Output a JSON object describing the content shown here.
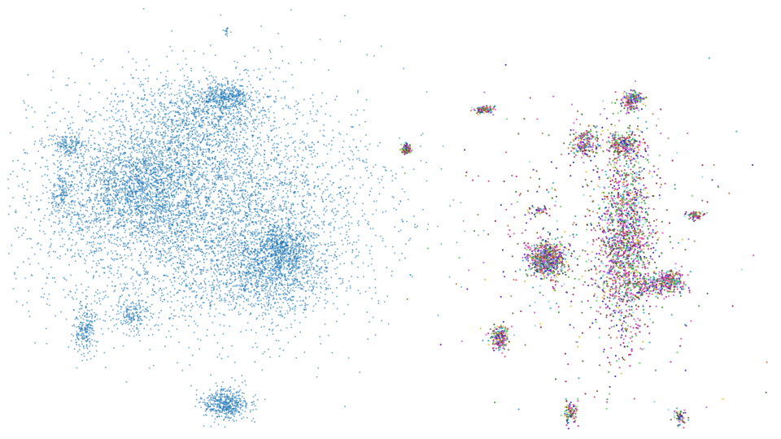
{
  "chart_data": [
    {
      "type": "scatter",
      "title": "",
      "xlabel": "",
      "ylabel": "",
      "axes_visible": false,
      "grid": false,
      "legend": "none",
      "point_color": "#1f77b4",
      "point_alpha": 0.55,
      "clusters": [
        {
          "center": [
            0.26,
            0.48
          ],
          "spread": [
            0.22,
            0.26
          ],
          "count": 5200
        },
        {
          "center": [
            0.18,
            0.42
          ],
          "spread": [
            0.08,
            0.12
          ],
          "count": 1400
        },
        {
          "center": [
            0.26,
            0.27
          ],
          "spread": [
            0.09,
            0.1
          ],
          "count": 900
        },
        {
          "center": [
            0.29,
            0.22
          ],
          "spread": [
            0.035,
            0.03
          ],
          "count": 350
        },
        {
          "center": [
            0.36,
            0.56
          ],
          "spread": [
            0.035,
            0.05
          ],
          "count": 500
        },
        {
          "center": [
            0.35,
            0.62
          ],
          "spread": [
            0.07,
            0.09
          ],
          "count": 900
        },
        {
          "center": [
            0.09,
            0.33
          ],
          "spread": [
            0.025,
            0.03
          ],
          "count": 180
        },
        {
          "center": [
            0.08,
            0.44
          ],
          "spread": [
            0.015,
            0.07
          ],
          "count": 160
        },
        {
          "center": [
            0.11,
            0.75
          ],
          "spread": [
            0.015,
            0.06
          ],
          "count": 220
        },
        {
          "center": [
            0.17,
            0.72
          ],
          "spread": [
            0.02,
            0.04
          ],
          "count": 160
        },
        {
          "center": [
            0.29,
            0.92
          ],
          "spread": [
            0.03,
            0.035
          ],
          "count": 480
        },
        {
          "center": [
            0.29,
            0.07
          ],
          "spread": [
            0.004,
            0.01
          ],
          "count": 15
        }
      ]
    },
    {
      "type": "scatter",
      "title": "",
      "xlabel": "",
      "ylabel": "",
      "axes_visible": false,
      "grid": false,
      "legend": "none",
      "point_alpha": 0.85,
      "palette": [
        "#6a1bd1",
        "#2ca7c4",
        "#c42b9b",
        "#3b9b3b",
        "#e84fbf",
        "#7a5a3a",
        "#1a2bb0",
        "#9b1b4b",
        "#5ed35e",
        "#c27a4a",
        "#8ad3f0",
        "#b46be8",
        "#2a6b2a",
        "#e0c040",
        "#d14a7a"
      ],
      "clusters": [
        {
          "center": [
            0.8,
            0.55
          ],
          "spread": [
            0.035,
            0.22
          ],
          "count": 1500
        },
        {
          "center": [
            0.7,
            0.59
          ],
          "spread": [
            0.025,
            0.04
          ],
          "count": 700
        },
        {
          "center": [
            0.8,
            0.33
          ],
          "spread": [
            0.02,
            0.03
          ],
          "count": 240
        },
        {
          "center": [
            0.75,
            0.33
          ],
          "spread": [
            0.02,
            0.035
          ],
          "count": 200
        },
        {
          "center": [
            0.81,
            0.23
          ],
          "spread": [
            0.015,
            0.02
          ],
          "count": 180
        },
        {
          "center": [
            0.86,
            0.64
          ],
          "spread": [
            0.015,
            0.025
          ],
          "count": 200
        },
        {
          "center": [
            0.83,
            0.65
          ],
          "spread": [
            0.03,
            0.02
          ],
          "count": 180
        },
        {
          "center": [
            0.64,
            0.77
          ],
          "spread": [
            0.012,
            0.03
          ],
          "count": 200
        },
        {
          "center": [
            0.52,
            0.34
          ],
          "spread": [
            0.006,
            0.012
          ],
          "count": 110
        },
        {
          "center": [
            0.62,
            0.25
          ],
          "spread": [
            0.015,
            0.008
          ],
          "count": 90
        },
        {
          "center": [
            0.73,
            0.94
          ],
          "spread": [
            0.01,
            0.03
          ],
          "count": 90
        },
        {
          "center": [
            0.87,
            0.95
          ],
          "spread": [
            0.01,
            0.02
          ],
          "count": 60
        },
        {
          "center": [
            0.89,
            0.49
          ],
          "spread": [
            0.012,
            0.01
          ],
          "count": 70
        },
        {
          "center": [
            0.76,
            0.55
          ],
          "spread": [
            0.16,
            0.33
          ],
          "count": 450
        },
        {
          "center": [
            0.69,
            0.48
          ],
          "spread": [
            0.012,
            0.01
          ],
          "count": 40
        }
      ]
    }
  ]
}
